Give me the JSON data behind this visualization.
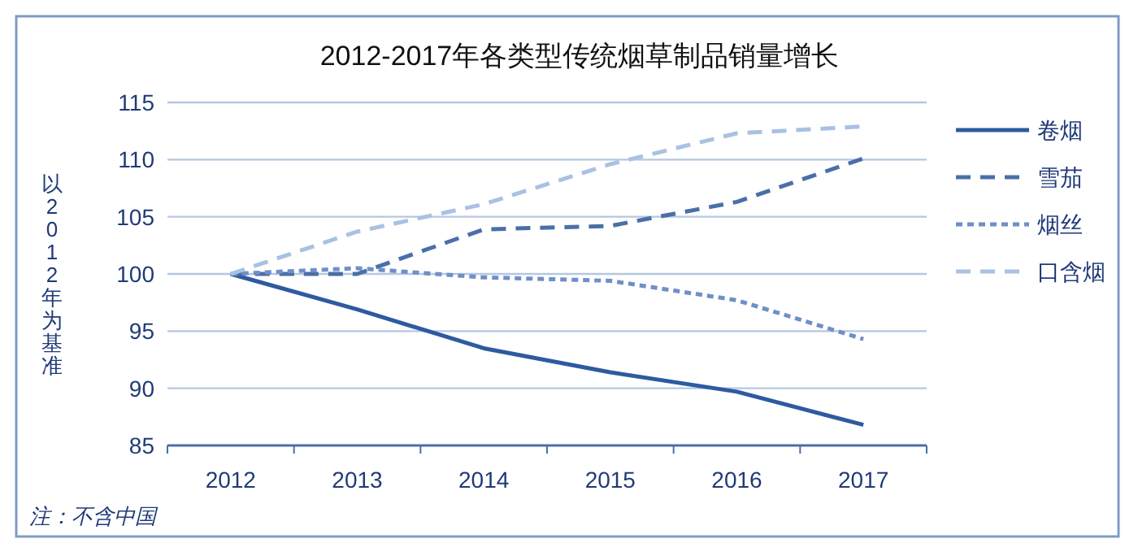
{
  "chart_data": {
    "type": "line",
    "title": "2012-2017年各类型传统烟草制品销量增长",
    "ylabel": "以2012年为基准",
    "categories": [
      "2012",
      "2013",
      "2014",
      "2015",
      "2016",
      "2017"
    ],
    "series": [
      {
        "name": "卷烟",
        "color": "#2e5aa0",
        "line_style": "solid",
        "values": [
          100,
          96.9,
          93.5,
          91.4,
          89.7,
          86.8
        ]
      },
      {
        "name": "雪茄",
        "color": "#4a6fa8",
        "line_style": "dashed",
        "values": [
          100,
          100,
          103.9,
          104.2,
          106.3,
          110.1
        ]
      },
      {
        "name": "烟丝",
        "color": "#6f8fc8",
        "line_style": "dotted",
        "values": [
          100,
          100.5,
          99.7,
          99.4,
          97.7,
          94.3
        ]
      },
      {
        "name": "口含烟",
        "color": "#a9c1e2",
        "line_style": "dashed",
        "values": [
          100,
          103.7,
          106.1,
          109.6,
          112.3,
          112.9
        ]
      }
    ],
    "ylim": [
      85,
      115
    ],
    "yticks": [
      85,
      90,
      95,
      100,
      105,
      110,
      115
    ],
    "grid": "y",
    "legend": "right",
    "marker": "none",
    "annotations": [
      "注：不含中国"
    ]
  }
}
